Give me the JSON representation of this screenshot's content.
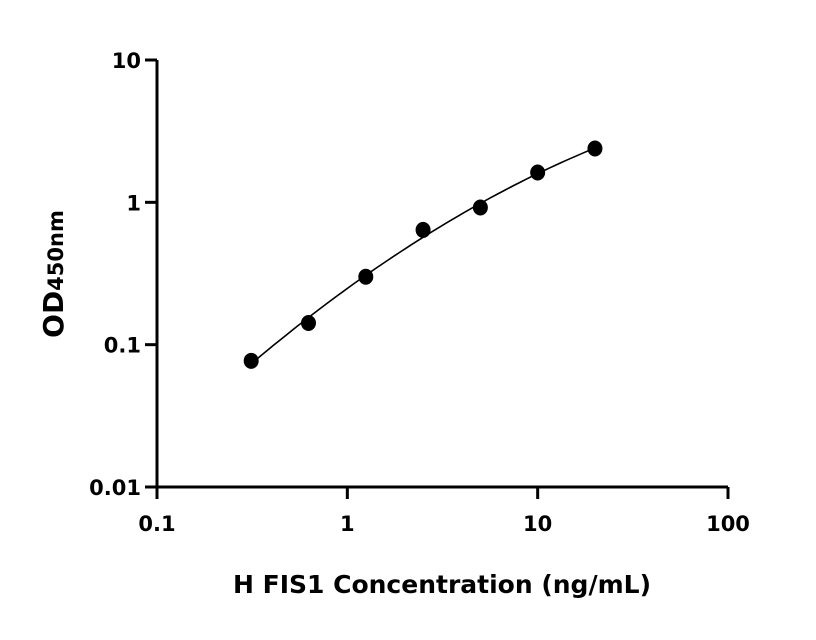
{
  "chart_data": {
    "type": "scatter",
    "title": "",
    "xlabel": "H FIS1 Concentration (ng/mL)",
    "ylabel_main": "OD",
    "ylabel_sub": "450nm",
    "x_scale": "log",
    "y_scale": "log",
    "xlim": [
      0.1,
      100
    ],
    "ylim": [
      0.01,
      10
    ],
    "x_ticks": [
      "0.1",
      "1",
      "10",
      "100"
    ],
    "y_ticks": [
      "0.01",
      "0.1",
      "1",
      "10"
    ],
    "grid": false,
    "fit_curve": true,
    "x": [
      0.3125,
      0.625,
      1.25,
      2.5,
      5,
      10,
      20
    ],
    "y": [
      0.077,
      0.142,
      0.3,
      0.64,
      0.92,
      1.62,
      2.39
    ],
    "marker_color": "#000000"
  }
}
